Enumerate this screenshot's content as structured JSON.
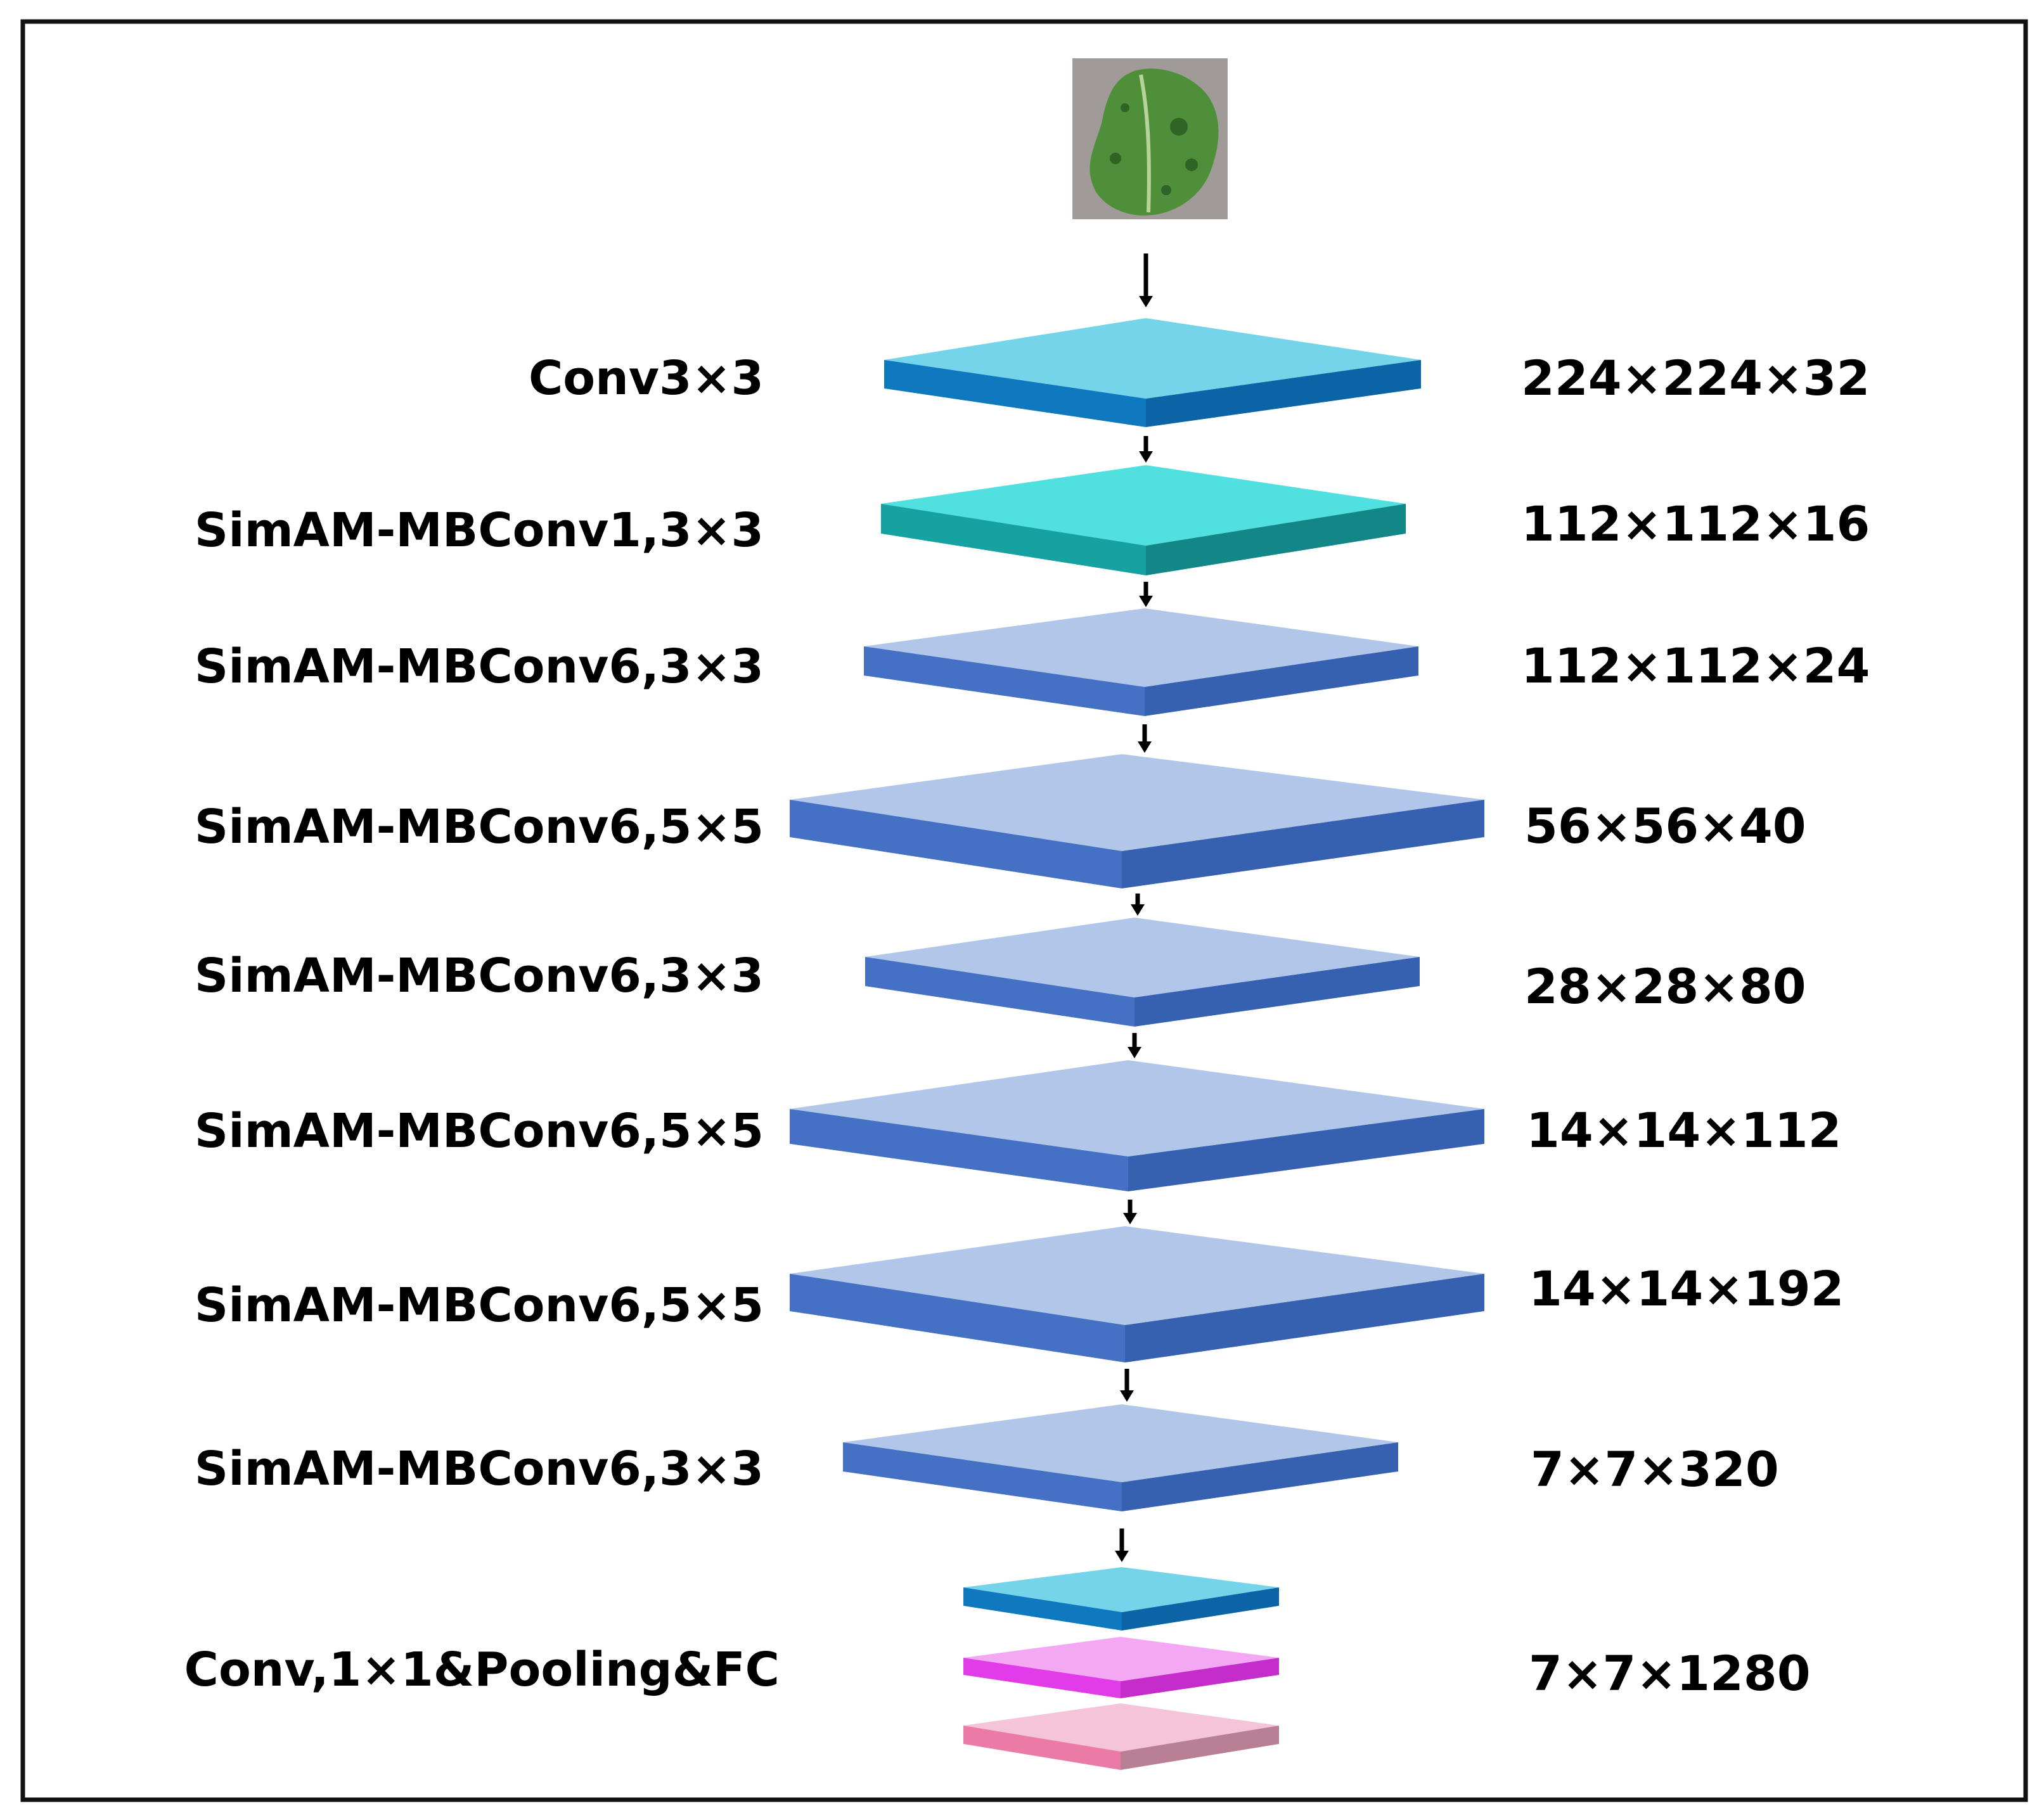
{
  "input_image": {
    "icon": "leaf-photo",
    "colors": {
      "background": "#a09a99",
      "leaf": "#4f8f3a",
      "leaf_dark": "#2f6426",
      "vein": "#b6d49a"
    }
  },
  "layers": [
    {
      "label": "Conv3×3",
      "shape": "224×224×32",
      "colors": {
        "top": "#74d4ea",
        "front": "#0f79c0",
        "side": "#0b64a5"
      }
    },
    {
      "label": "SimAM-MBConv1,3×3",
      "shape": "112×112×16",
      "colors": {
        "top": "#50e0e0",
        "front": "#17a2a2",
        "side": "#128787"
      }
    },
    {
      "label": "SimAM-MBConv6,3×3",
      "shape": "112×112×24",
      "colors": {
        "top": "#b2c6ea",
        "front": "#4471c4",
        "side": "#3660b0"
      }
    },
    {
      "label": "SimAM-MBConv6,5×5",
      "shape": "56×56×40",
      "colors": {
        "top": "#b2c6ea",
        "front": "#4471c4",
        "side": "#3660b0"
      }
    },
    {
      "label": "SimAM-MBConv6,3×3",
      "shape": "28×28×80",
      "colors": {
        "top": "#b2c6ea",
        "front": "#4471c4",
        "side": "#3660b0"
      }
    },
    {
      "label": "SimAM-MBConv6,5×5",
      "shape": "14×14×112",
      "colors": {
        "top": "#b2c6ea",
        "front": "#4471c4",
        "side": "#3660b0"
      }
    },
    {
      "label": "SimAM-MBConv6,5×5",
      "shape": "14×14×192",
      "colors": {
        "top": "#b2c6ea",
        "front": "#4471c4",
        "side": "#3660b0"
      }
    },
    {
      "label": "SimAM-MBConv6,3×3",
      "shape": "7×7×320",
      "colors": {
        "top": "#b2c6ea",
        "front": "#4471c4",
        "side": "#3660b0"
      }
    }
  ],
  "head": {
    "label": "Conv,1×1&Pooling&FC",
    "shape": "7×7×1280",
    "plates": [
      {
        "name": "conv1x1",
        "colors": {
          "top": "#74d4ea",
          "front": "#0f79c0",
          "side": "#0b64a5"
        }
      },
      {
        "name": "pooling",
        "colors": {
          "top": "#f4a8f4",
          "front": "#e23ce8",
          "side": "#c42ccc"
        }
      },
      {
        "name": "fc",
        "colors": {
          "top": "#f4c4d8",
          "front": "#ec7aa6",
          "side": "#b97f95"
        }
      }
    ]
  }
}
